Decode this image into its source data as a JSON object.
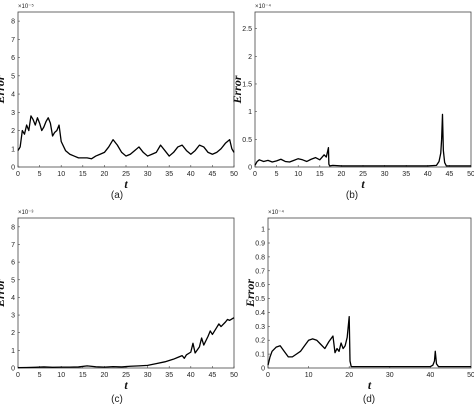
{
  "chart_data": [
    {
      "panel_label": "(a)",
      "type": "line",
      "ylabel": "Error",
      "xlabel": "t",
      "exponent_label": "×10⁻⁵",
      "xlim": [
        0,
        50
      ],
      "ylim": [
        0,
        8.5
      ],
      "xticks": [
        0,
        5,
        10,
        15,
        20,
        25,
        30,
        35,
        40,
        45,
        50
      ],
      "yticks": [
        0,
        1,
        2,
        3,
        4,
        5,
        6,
        7,
        8
      ],
      "series": [
        {
          "x": [
            0,
            0.5,
            1,
            1.5,
            2,
            2.5,
            3,
            3.5,
            4,
            4.5,
            5,
            5.5,
            6,
            6.5,
            7,
            7.5,
            8,
            8.5,
            9,
            9.5,
            10,
            11,
            12,
            13,
            14,
            15,
            16,
            17,
            18,
            19,
            20,
            21,
            22,
            23,
            24,
            25,
            26,
            27,
            28,
            29,
            30,
            31,
            32,
            33,
            34,
            35,
            36,
            37,
            38,
            39,
            40,
            41,
            42,
            43,
            44,
            45,
            46,
            47,
            48,
            49,
            49.5,
            50
          ],
          "y": [
            0.9,
            1.1,
            2.0,
            1.8,
            2.3,
            2.0,
            2.8,
            2.6,
            2.3,
            2.7,
            2.4,
            2.0,
            2.2,
            2.5,
            2.7,
            2.4,
            1.7,
            1.9,
            2.0,
            2.3,
            1.4,
            0.9,
            0.7,
            0.6,
            0.5,
            0.5,
            0.5,
            0.45,
            0.6,
            0.7,
            0.8,
            1.1,
            1.5,
            1.2,
            0.8,
            0.6,
            0.7,
            0.9,
            1.1,
            0.8,
            0.6,
            0.7,
            0.8,
            1.2,
            0.9,
            0.6,
            0.8,
            1.1,
            1.2,
            0.9,
            0.7,
            0.9,
            1.2,
            1.1,
            0.8,
            0.7,
            0.8,
            1.0,
            1.3,
            1.5,
            1.0,
            0.8
          ]
        }
      ]
    },
    {
      "panel_label": "(b)",
      "type": "line",
      "ylabel": "Error",
      "xlabel": "t",
      "exponent_label": "×10⁻⁴",
      "xlim": [
        0,
        50
      ],
      "ylim": [
        0,
        2.8
      ],
      "xticks": [
        0,
        5,
        10,
        15,
        20,
        25,
        30,
        35,
        40,
        45,
        50
      ],
      "yticks": [
        0,
        0.5,
        1,
        1.5,
        2,
        2.5
      ],
      "series": [
        {
          "x": [
            0,
            0.5,
            1,
            2,
            3,
            4,
            5,
            6,
            7,
            8,
            9,
            10,
            11,
            12,
            13,
            14,
            15,
            16,
            16.5,
            16.8,
            17,
            17.1,
            17.3,
            18,
            20,
            25,
            30,
            35,
            40,
            42,
            42.6,
            43.0,
            43.2,
            43.4,
            43.6,
            43.9,
            44.3,
            45,
            50
          ],
          "y": [
            0.03,
            0.1,
            0.13,
            0.1,
            0.12,
            0.09,
            0.11,
            0.14,
            0.1,
            0.09,
            0.12,
            0.15,
            0.13,
            0.1,
            0.14,
            0.17,
            0.13,
            0.22,
            0.18,
            0.28,
            0.35,
            0.05,
            0.02,
            0.03,
            0.02,
            0.02,
            0.02,
            0.02,
            0.02,
            0.03,
            0.1,
            0.25,
            0.5,
            0.95,
            0.3,
            0.08,
            0.02,
            0.02,
            0.02
          ]
        }
      ]
    },
    {
      "panel_label": "(c)",
      "type": "line",
      "ylabel": "Error",
      "xlabel": "t",
      "exponent_label": "×10⁻³",
      "xlim": [
        0,
        50
      ],
      "ylim": [
        0,
        8.5
      ],
      "xticks": [
        0,
        5,
        10,
        15,
        20,
        25,
        30,
        35,
        40,
        45,
        50
      ],
      "yticks": [
        0,
        1,
        2,
        3,
        4,
        5,
        6,
        7,
        8
      ],
      "series": [
        {
          "x": [
            0,
            2,
            4,
            6,
            8,
            10,
            12,
            14,
            16,
            18,
            20,
            22,
            24,
            26,
            28,
            30,
            32,
            34,
            36,
            37,
            38,
            38.5,
            39,
            40,
            40.5,
            41,
            42,
            42.5,
            43,
            44,
            44.5,
            45,
            46,
            46.5,
            47,
            48,
            48.5,
            49,
            50
          ],
          "y": [
            0.02,
            0.03,
            0.04,
            0.06,
            0.04,
            0.05,
            0.05,
            0.06,
            0.12,
            0.07,
            0.05,
            0.08,
            0.06,
            0.1,
            0.12,
            0.15,
            0.25,
            0.35,
            0.5,
            0.6,
            0.7,
            0.55,
            0.75,
            0.9,
            1.4,
            0.85,
            1.2,
            1.7,
            1.3,
            1.8,
            2.1,
            1.9,
            2.3,
            2.5,
            2.35,
            2.6,
            2.75,
            2.7,
            2.85
          ]
        }
      ]
    },
    {
      "panel_label": "(d)",
      "type": "line",
      "ylabel": "Error",
      "xlabel": "t",
      "exponent_label": "×10⁻⁴",
      "xlim": [
        0,
        50
      ],
      "ylim": [
        0,
        1.08
      ],
      "xticks": [
        0,
        10,
        20,
        30,
        40,
        50
      ],
      "yticks": [
        0,
        0.1,
        0.2,
        0.3,
        0.4,
        0.5,
        0.6,
        0.7,
        0.8,
        0.9,
        1
      ],
      "series": [
        {
          "x": [
            0,
            0.5,
            1,
            2,
            3,
            4,
            5,
            6,
            7,
            8,
            9,
            10,
            11,
            12,
            13,
            14,
            15,
            16,
            16.5,
            17,
            17.5,
            18,
            18.5,
            19,
            19.5,
            20,
            20.2,
            20.5,
            21,
            25,
            30,
            35,
            40,
            40.6,
            41,
            41.2,
            41.5,
            42,
            45,
            50
          ],
          "y": [
            0.02,
            0.08,
            0.12,
            0.15,
            0.16,
            0.12,
            0.08,
            0.08,
            0.1,
            0.12,
            0.16,
            0.2,
            0.21,
            0.2,
            0.17,
            0.14,
            0.19,
            0.23,
            0.11,
            0.14,
            0.12,
            0.18,
            0.14,
            0.16,
            0.22,
            0.37,
            0.05,
            0.01,
            0.01,
            0.01,
            0.01,
            0.01,
            0.01,
            0.02,
            0.05,
            0.12,
            0.03,
            0.01,
            0.01,
            0.01
          ]
        }
      ]
    }
  ]
}
